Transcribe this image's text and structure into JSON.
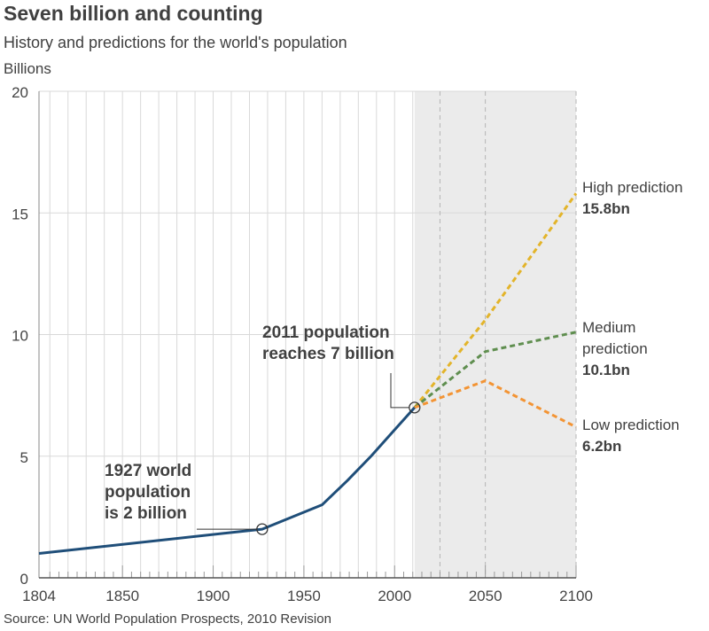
{
  "header": {
    "title": "Seven billion and counting",
    "subtitle": "History and predictions for the world's population",
    "unit": "Billions"
  },
  "footer": {
    "source": "Source: UN World Population Prospects, 2010 Revision"
  },
  "colors": {
    "history": "#1f4e79",
    "high": "#e3b42a",
    "medium": "#5f8e4f",
    "low": "#f39434",
    "forecast_shade": "#ebebeb",
    "grid": "#d9d9d9"
  },
  "chart_data": {
    "type": "line",
    "title": "Seven billion and counting",
    "subtitle": "History and predictions for the world's population",
    "ylabel": "Billions",
    "xlim": [
      1804,
      2100
    ],
    "ylim": [
      0,
      20
    ],
    "x_ticks": [
      1804,
      1850,
      1900,
      1950,
      2000,
      2050,
      2100
    ],
    "y_ticks": [
      0,
      5,
      10,
      15,
      20
    ],
    "grid": true,
    "forecast_region": [
      2011,
      2100
    ],
    "series": [
      {
        "key": "history",
        "x": [
          1804,
          1927,
          1960,
          1974,
          1987,
          1999,
          2011
        ],
        "y": [
          1.0,
          2.0,
          3.0,
          4.0,
          5.0,
          6.0,
          7.0
        ]
      },
      {
        "key": "high",
        "name": "High prediction",
        "x": [
          2011,
          2050,
          2100
        ],
        "y": [
          7.0,
          10.6,
          15.8
        ],
        "label_value": "15.8bn"
      },
      {
        "key": "medium",
        "name": "Medium prediction",
        "x": [
          2011,
          2050,
          2100
        ],
        "y": [
          7.0,
          9.3,
          10.1
        ],
        "label_value": "10.1bn"
      },
      {
        "key": "low",
        "name": "Low prediction",
        "x": [
          2011,
          2050,
          2100
        ],
        "y": [
          7.0,
          8.1,
          6.2
        ],
        "label_value": "6.2bn"
      }
    ],
    "annotations": [
      {
        "key": "a1927",
        "text": [
          "1927 world",
          "population",
          "is 2 billion"
        ],
        "x": 1927,
        "y": 2.0
      },
      {
        "key": "a2011",
        "text": [
          "2011 population",
          "reaches 7 billion"
        ],
        "x": 2011,
        "y": 7.0
      }
    ]
  }
}
